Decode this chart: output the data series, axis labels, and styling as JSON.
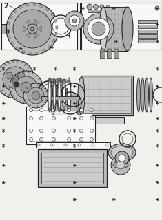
{
  "bg_color": "#f0f0ec",
  "line_color": "#444444",
  "dark_color": "#222222",
  "title": "2",
  "fig_width": 2.35,
  "fig_height": 3.2,
  "dpi": 100
}
